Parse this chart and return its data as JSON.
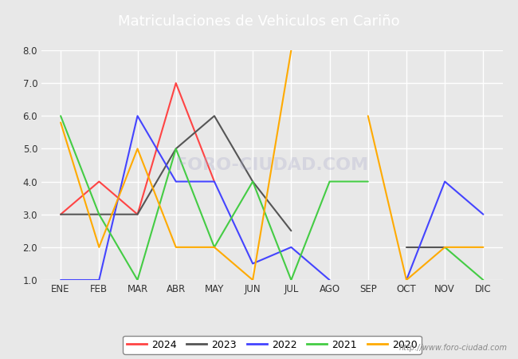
{
  "title": "Matriculaciones de Vehiculos en Cariño",
  "months": [
    "ENE",
    "FEB",
    "MAR",
    "ABR",
    "MAY",
    "JUN",
    "JUL",
    "AGO",
    "SEP",
    "OCT",
    "NOV",
    "DIC"
  ],
  "series": {
    "2024": {
      "color": "#ff4444",
      "data": [
        3,
        4,
        3,
        7,
        4,
        null,
        null,
        null,
        null,
        null,
        null,
        null
      ]
    },
    "2023": {
      "color": "#555555",
      "data": [
        3,
        3,
        3,
        5,
        6,
        4,
        2.5,
        null,
        null,
        2,
        2,
        null
      ]
    },
    "2022": {
      "color": "#4444ff",
      "data": [
        1,
        1,
        6,
        4,
        4,
        1.5,
        2,
        1,
        null,
        1,
        4,
        3
      ]
    },
    "2021": {
      "color": "#44cc44",
      "data": [
        6,
        3,
        1,
        5,
        2,
        4,
        1,
        4,
        4,
        null,
        2,
        1
      ]
    },
    "2020": {
      "color": "#ffaa00",
      "data": [
        5.8,
        2,
        5,
        2,
        2,
        1,
        8,
        null,
        6,
        1,
        2,
        2
      ]
    }
  },
  "ylim": [
    1.0,
    8.0
  ],
  "yticks": [
    1.0,
    2.0,
    3.0,
    4.0,
    5.0,
    6.0,
    7.0,
    8.0
  ],
  "background_color": "#e8e8e8",
  "plot_bg_color": "#e8e8e8",
  "title_bg_color": "#4488cc",
  "title_color": "#ffffff",
  "grid_color": "#ffffff",
  "watermark": "http://www.foro-ciudad.com"
}
